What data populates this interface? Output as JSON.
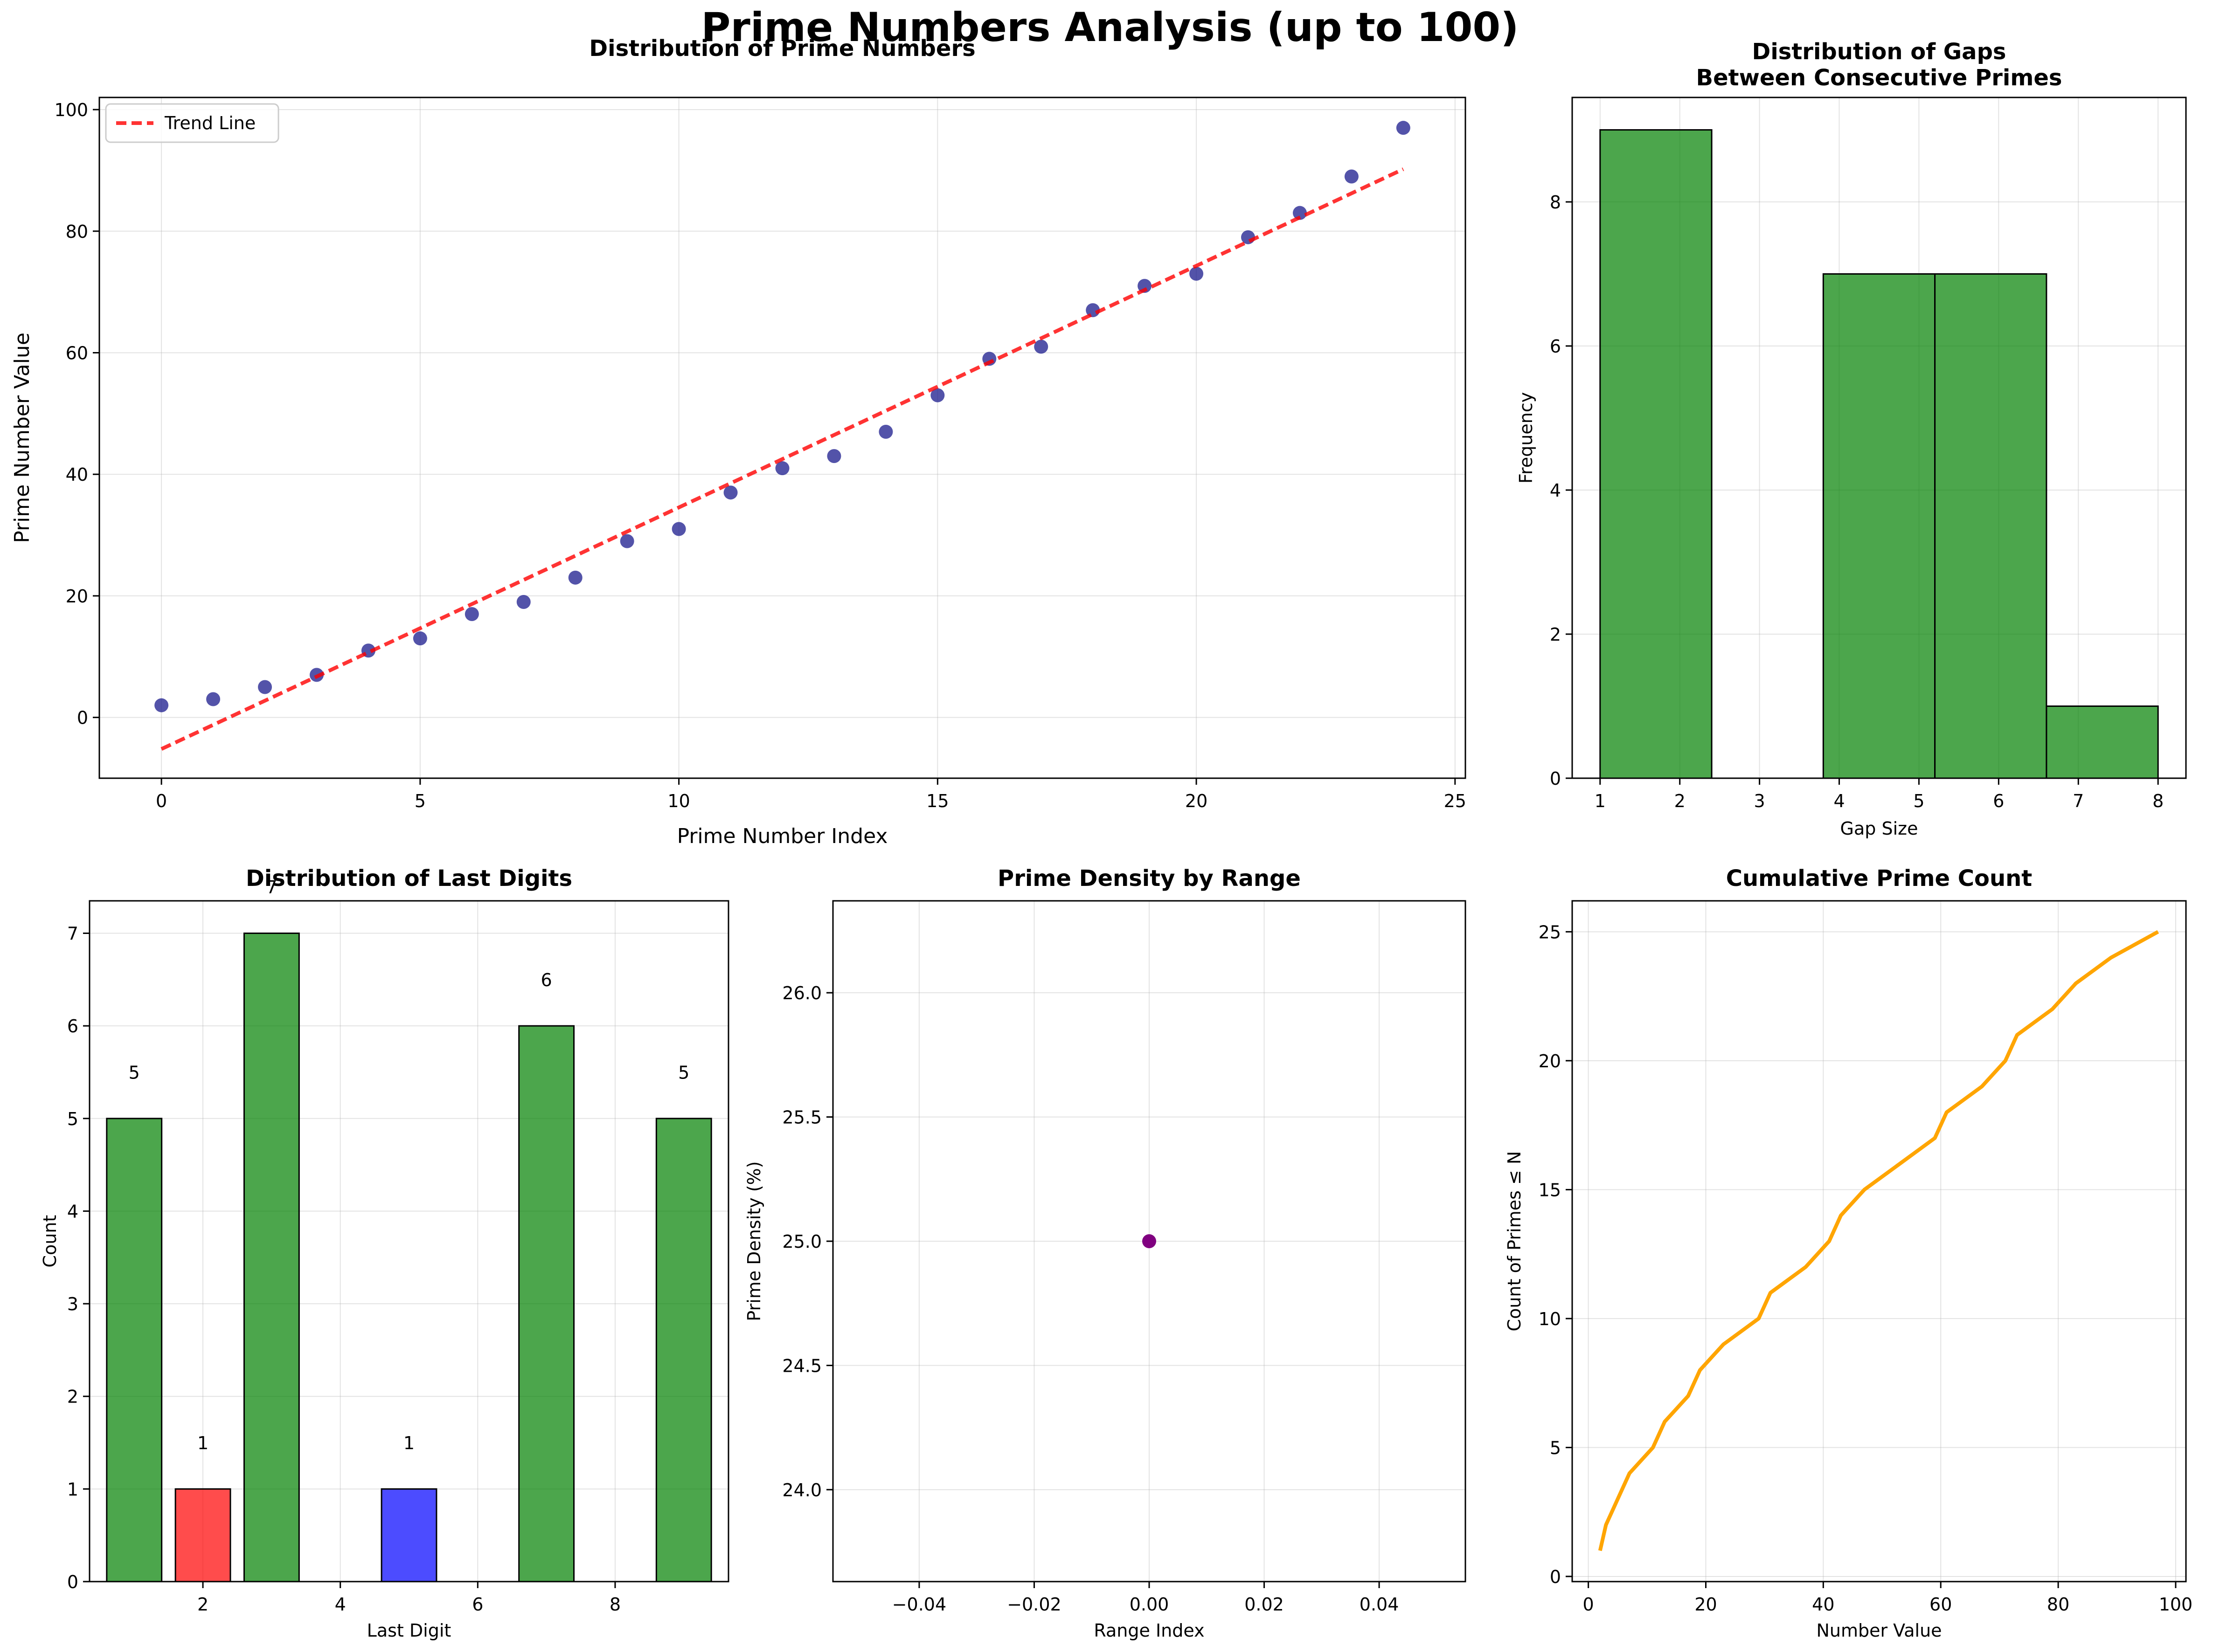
{
  "figure": {
    "title": "Prime Numbers Analysis (up to 100)"
  },
  "chart_data": [
    {
      "type": "scatter",
      "title": "Distribution of Prime Numbers",
      "xlabel": "Prime Number Index",
      "ylabel": "Prime Number Value",
      "xlim": [
        -1.2,
        25.2
      ],
      "ylim": [
        -10,
        102
      ],
      "xticks": [
        0,
        5,
        10,
        15,
        20,
        25
      ],
      "yticks": [
        0,
        20,
        40,
        60,
        80,
        100
      ],
      "grid": true,
      "legend": {
        "position": "top-left",
        "entries": [
          "Trend Line"
        ]
      },
      "series": [
        {
          "kind": "points",
          "color": "#1a1a8c",
          "x": [
            0,
            1,
            2,
            3,
            4,
            5,
            6,
            7,
            8,
            9,
            10,
            11,
            12,
            13,
            14,
            15,
            16,
            17,
            18,
            19,
            20,
            21,
            22,
            23,
            24
          ],
          "y": [
            2,
            3,
            5,
            7,
            11,
            13,
            17,
            19,
            23,
            29,
            31,
            37,
            41,
            43,
            47,
            53,
            59,
            61,
            67,
            71,
            73,
            79,
            83,
            89,
            97
          ]
        },
        {
          "kind": "line",
          "name": "Trend Line",
          "color": "#ff0000",
          "dashed": true,
          "x": [
            0,
            24
          ],
          "y": [
            -5.2,
            90.2
          ]
        }
      ]
    },
    {
      "type": "bar",
      "title": "Distribution of Gaps\nBetween Consecutive Primes",
      "xlabel": "Gap Size",
      "ylabel": "Frequency",
      "xlim": [
        0.65,
        8.35
      ],
      "ylim": [
        0,
        9.45
      ],
      "xticks": [
        1,
        2,
        3,
        4,
        5,
        6,
        7,
        8
      ],
      "yticks": [
        0,
        2,
        4,
        6,
        8
      ],
      "grid": true,
      "color": "#008000",
      "bins": [
        {
          "start": 1.0,
          "end": 2.4,
          "value": 9
        },
        {
          "start": 2.4,
          "end": 3.8,
          "value": 0
        },
        {
          "start": 3.8,
          "end": 5.2,
          "value": 7
        },
        {
          "start": 5.2,
          "end": 6.6,
          "value": 7
        },
        {
          "start": 6.6,
          "end": 8.0,
          "value": 1
        }
      ]
    },
    {
      "type": "bar",
      "title": "Distribution of Last Digits",
      "xlabel": "Last Digit",
      "ylabel": "Count",
      "xlim": [
        0.35,
        9.65
      ],
      "ylim": [
        0,
        7.35
      ],
      "xticks": [
        2,
        4,
        6,
        8
      ],
      "yticks": [
        0,
        1,
        2,
        3,
        4,
        5,
        6,
        7
      ],
      "grid": true,
      "categories": [
        1,
        2,
        3,
        5,
        7,
        9
      ],
      "values": [
        5,
        1,
        7,
        1,
        6,
        5
      ],
      "colors": [
        "#008000",
        "#ff0000",
        "#008000",
        "#0000ff",
        "#008000",
        "#008000"
      ],
      "labels": [
        "5",
        "1",
        "7",
        "1",
        "6",
        "5"
      ]
    },
    {
      "type": "scatter",
      "title": "Prime Density by Range",
      "xlabel": "Range Index",
      "ylabel": "Prime Density (%)",
      "xlim": [
        -0.055,
        0.055
      ],
      "ylim": [
        23.63,
        26.37
      ],
      "xticks": [
        -0.04,
        -0.02,
        0.0,
        0.02,
        0.04
      ],
      "xtick_labels": [
        "−0.04",
        "−0.02",
        "0.00",
        "0.02",
        "0.04"
      ],
      "yticks": [
        24.0,
        24.5,
        25.0,
        25.5,
        26.0
      ],
      "ytick_labels": [
        "24.0",
        "24.5",
        "25.0",
        "25.5",
        "26.0"
      ],
      "grid": true,
      "color": "#800080",
      "x": [
        0
      ],
      "y": [
        25.0
      ]
    },
    {
      "type": "line",
      "title": "Cumulative Prime Count",
      "xlabel": "Number Value",
      "ylabel": "Count of Primes ≤ N",
      "xlim": [
        -2.75,
        101.75
      ],
      "ylim": [
        -0.2,
        26.2
      ],
      "xticks": [
        0,
        20,
        40,
        60,
        80,
        100
      ],
      "yticks": [
        0,
        5,
        10,
        15,
        20,
        25
      ],
      "grid": true,
      "color": "#ffa500",
      "x": [
        2,
        3,
        5,
        7,
        11,
        13,
        17,
        19,
        23,
        29,
        31,
        37,
        41,
        43,
        47,
        53,
        59,
        61,
        67,
        71,
        73,
        79,
        83,
        89,
        97
      ],
      "y": [
        1,
        2,
        3,
        4,
        5,
        6,
        7,
        8,
        9,
        10,
        11,
        12,
        13,
        14,
        15,
        16,
        17,
        18,
        19,
        20,
        21,
        22,
        23,
        24,
        25
      ]
    }
  ]
}
